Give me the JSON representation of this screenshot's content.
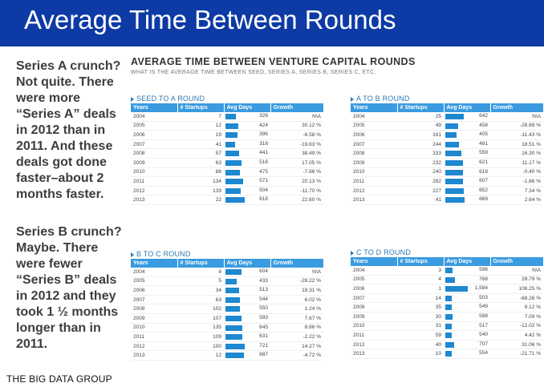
{
  "slide": {
    "title": "Average Time Between Rounds",
    "brand": "THE BIG DATA GROUP",
    "note_a": [
      "Series A crunch?",
      "Not quite. There",
      "were more",
      "“Series A” deals",
      "in 2012 than in",
      "2011.  And these",
      "deals got done",
      "faster–about 2",
      "months faster."
    ],
    "note_b": [
      "Series B crunch?",
      "Maybe. There",
      "were fewer",
      "“Series B” deals",
      "in 2012 and they",
      "took 1 ½ months",
      "longer than in",
      "2011."
    ]
  },
  "chart": {
    "title": "AVERAGE TIME BETWEEN VENTURE CAPITAL ROUNDS",
    "subtitle": "WHAT IS THE AVERAGE TIME BETWEEN SEED, SERIES A, SERIES B, SERIES C, ETC.",
    "columns": [
      "Years",
      "# Startups",
      "Avg Days",
      "Growth"
    ],
    "bar_color": "#1e88d0",
    "header_color": "#3a9be0"
  },
  "panels": {
    "seed_a": {
      "title": "SEED TO A ROUND",
      "rows": [
        {
          "year": "2004",
          "startups": "7",
          "days": "326",
          "growth": "N\\A"
        },
        {
          "year": "2005",
          "startups": "12",
          "days": "424",
          "growth": "30.12 %"
        },
        {
          "year": "2006",
          "startups": "19",
          "days": "396",
          "growth": "-6.58 %"
        },
        {
          "year": "2007",
          "startups": "41",
          "days": "318",
          "growth": "-19.63 %"
        },
        {
          "year": "2008",
          "startups": "57",
          "days": "441",
          "growth": "38.49 %"
        },
        {
          "year": "2009",
          "startups": "63",
          "days": "516",
          "growth": "17.05 %"
        },
        {
          "year": "2010",
          "startups": "88",
          "days": "475",
          "growth": "-7.86 %"
        },
        {
          "year": "2011",
          "startups": "134",
          "days": "571",
          "growth": "20.13 %"
        },
        {
          "year": "2012",
          "startups": "139",
          "days": "504",
          "growth": "-11.70 %"
        },
        {
          "year": "2013",
          "startups": "22",
          "days": "618",
          "growth": "22.60 %"
        }
      ]
    },
    "a_b": {
      "title": "A TO B ROUND",
      "rows": [
        {
          "year": "2004",
          "startups": "25",
          "days": "642",
          "growth": "N\\A"
        },
        {
          "year": "2005",
          "startups": "49",
          "days": "458",
          "growth": "-28.69 %"
        },
        {
          "year": "2006",
          "startups": "161",
          "days": "405",
          "growth": "-11.43 %"
        },
        {
          "year": "2007",
          "startups": "244",
          "days": "481",
          "growth": "18.51 %"
        },
        {
          "year": "2008",
          "startups": "333",
          "days": "559",
          "growth": "16.30 %"
        },
        {
          "year": "2009",
          "startups": "232",
          "days": "621",
          "growth": "11.17 %"
        },
        {
          "year": "2010",
          "startups": "240",
          "days": "619",
          "growth": "-0.40 %"
        },
        {
          "year": "2011",
          "startups": "282",
          "days": "607",
          "growth": "-1.86 %"
        },
        {
          "year": "2012",
          "startups": "227",
          "days": "652",
          "growth": "7.34 %"
        },
        {
          "year": "2013",
          "startups": "41",
          "days": "669",
          "growth": "2.64 %"
        }
      ]
    },
    "b_c": {
      "title": "B TO C ROUND",
      "rows": [
        {
          "year": "2004",
          "startups": "8",
          "days": "604",
          "growth": "N\\A"
        },
        {
          "year": "2005",
          "startups": "5",
          "days": "433",
          "growth": "-28.22 %"
        },
        {
          "year": "2006",
          "startups": "34",
          "days": "513",
          "growth": "18.31 %"
        },
        {
          "year": "2007",
          "startups": "63",
          "days": "544",
          "growth": "6.02 %"
        },
        {
          "year": "2008",
          "startups": "102",
          "days": "550",
          "growth": "1.24 %"
        },
        {
          "year": "2009",
          "startups": "107",
          "days": "593",
          "growth": "7.67 %"
        },
        {
          "year": "2010",
          "startups": "135",
          "days": "645",
          "growth": "8.86 %"
        },
        {
          "year": "2011",
          "startups": "109",
          "days": "631",
          "growth": "-2.22 %"
        },
        {
          "year": "2012",
          "startups": "100",
          "days": "721",
          "growth": "14.27 %"
        },
        {
          "year": "2013",
          "startups": "12",
          "days": "687",
          "growth": "-4.72 %"
        }
      ]
    },
    "c_d": {
      "title": "C TO D ROUND",
      "rows": [
        {
          "year": "2004",
          "startups": "3",
          "days": "596",
          "growth": "N\\A"
        },
        {
          "year": "2005",
          "startups": "4",
          "days": "768",
          "growth": "28.79 %"
        },
        {
          "year": "2006",
          "startups": "1",
          "days": "1,584",
          "growth": "106.25 %"
        },
        {
          "year": "2007",
          "startups": "14",
          "days": "503",
          "growth": "-68.26 %"
        },
        {
          "year": "2008",
          "startups": "35",
          "days": "549",
          "growth": "9.12 %"
        },
        {
          "year": "2009",
          "startups": "30",
          "days": "588",
          "growth": "7.09 %"
        },
        {
          "year": "2010",
          "startups": "31",
          "days": "517",
          "growth": "-12.02 %"
        },
        {
          "year": "2011",
          "startups": "59",
          "days": "540",
          "growth": "4.42 %"
        },
        {
          "year": "2012",
          "startups": "40",
          "days": "707",
          "growth": "31.06 %"
        },
        {
          "year": "2013",
          "startups": "10",
          "days": "554",
          "growth": "-21.71 %"
        }
      ]
    }
  }
}
